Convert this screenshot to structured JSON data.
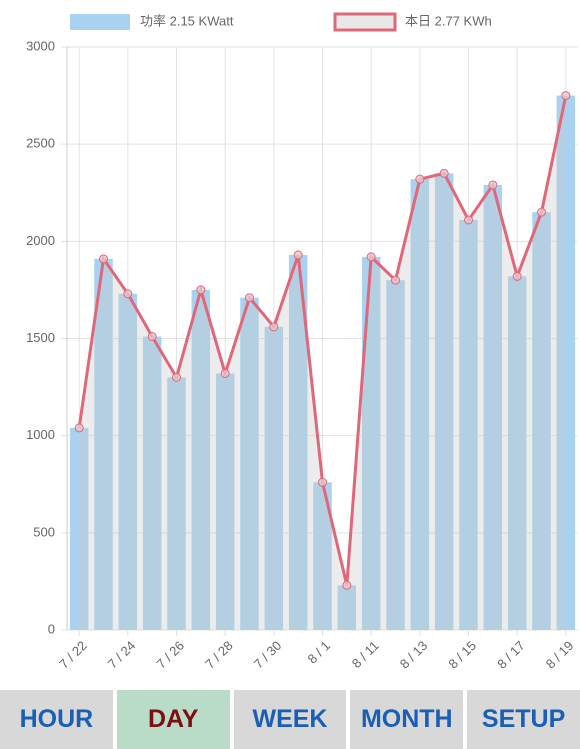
{
  "chart_data": {
    "type": "bar-line",
    "categories": [
      "7 / 22",
      null,
      "7 / 24",
      null,
      "7 / 26",
      null,
      "7 / 28",
      null,
      "7 / 30",
      null,
      "8 / 1",
      null,
      "8 / 11",
      null,
      "8 / 13",
      null,
      "8 / 15",
      null,
      "8 / 17",
      null,
      "8 / 19"
    ],
    "series": [
      {
        "name": "功率 2.15 KWatt",
        "type": "bar",
        "color": "#a9d1f0",
        "values": [
          1040,
          1910,
          1730,
          1510,
          1300,
          1750,
          1320,
          1710,
          1560,
          1930,
          760,
          230,
          1920,
          1800,
          2320,
          2350,
          2110,
          2290,
          1820,
          2150,
          2750
        ]
      },
      {
        "name": "本日 2.77 KWh",
        "type": "line",
        "color": "#e0677a",
        "values": [
          1040,
          1910,
          1730,
          1510,
          1300,
          1750,
          1320,
          1710,
          1560,
          1930,
          760,
          230,
          1920,
          1800,
          2320,
          2350,
          2110,
          2290,
          1820,
          2150,
          2750
        ]
      }
    ],
    "ylim": [
      0,
      3000
    ],
    "yticks": [
      0,
      500,
      1000,
      1500,
      2000,
      2500,
      3000
    ],
    "grid": true
  },
  "tabs": [
    "HOUR",
    "DAY",
    "WEEK",
    "MONTH",
    "SETUP"
  ],
  "selected_tab": 1
}
